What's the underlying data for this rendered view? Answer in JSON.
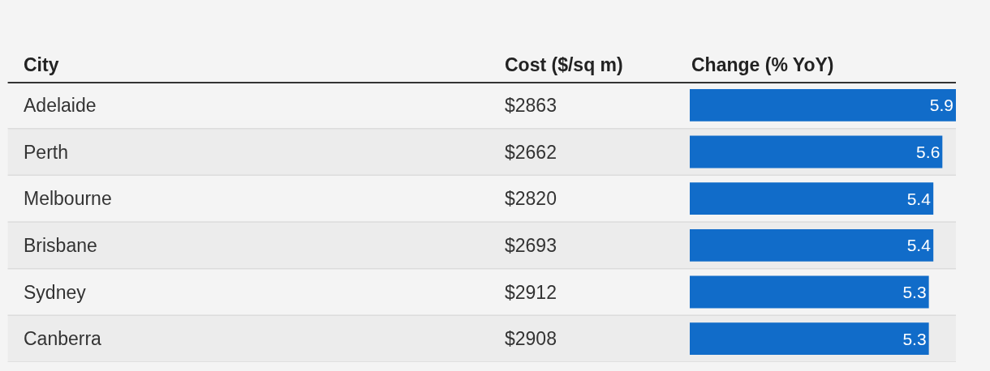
{
  "chart_data": {
    "type": "bar",
    "orientation": "horizontal",
    "title": "Change (% YoY)",
    "ylabel": "City",
    "categories": [
      "Adelaide",
      "Perth",
      "Melbourne",
      "Brisbane",
      "Sydney",
      "Canberra"
    ],
    "values": [
      5.9,
      5.6,
      5.4,
      5.4,
      5.3,
      5.3
    ],
    "color": "#116cc9",
    "data_labels": true,
    "xlim": [
      0,
      5.9
    ],
    "tick_labels": "y",
    "grid": false,
    "legend": false,
    "annotations": [
      "Cost ($/sq m)",
      "$2863",
      "$2662",
      "$2820",
      "$2693",
      "$2912",
      "$2908"
    ]
  }
}
